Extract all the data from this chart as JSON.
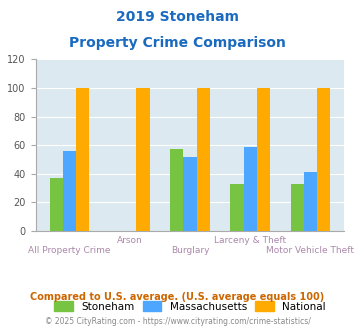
{
  "title_line1": "2019 Stoneham",
  "title_line2": "Property Crime Comparison",
  "categories": [
    "All Property Crime",
    "Arson",
    "Burglary",
    "Larceny & Theft",
    "Motor Vehicle Theft"
  ],
  "stoneham": [
    37,
    0,
    57,
    33,
    33
  ],
  "massachusetts": [
    56,
    0,
    52,
    59,
    41
  ],
  "national": [
    100,
    100,
    100,
    100,
    100
  ],
  "stoneham_color": "#76c442",
  "massachusetts_color": "#4da6ff",
  "national_color": "#ffaa00",
  "bg_color": "#dce9f0",
  "ylim": [
    0,
    120
  ],
  "yticks": [
    0,
    20,
    40,
    60,
    80,
    100,
    120
  ],
  "xlabel_color": "#aa88aa",
  "title_color": "#1a6ac0",
  "legend_labels": [
    "Stoneham",
    "Massachusetts",
    "National"
  ],
  "footnote1": "Compared to U.S. average. (U.S. average equals 100)",
  "footnote2": "© 2025 CityRating.com - https://www.cityrating.com/crime-statistics/",
  "footnote1_color": "#cc6600",
  "footnote2_color": "#888888",
  "bar_width": 0.22
}
